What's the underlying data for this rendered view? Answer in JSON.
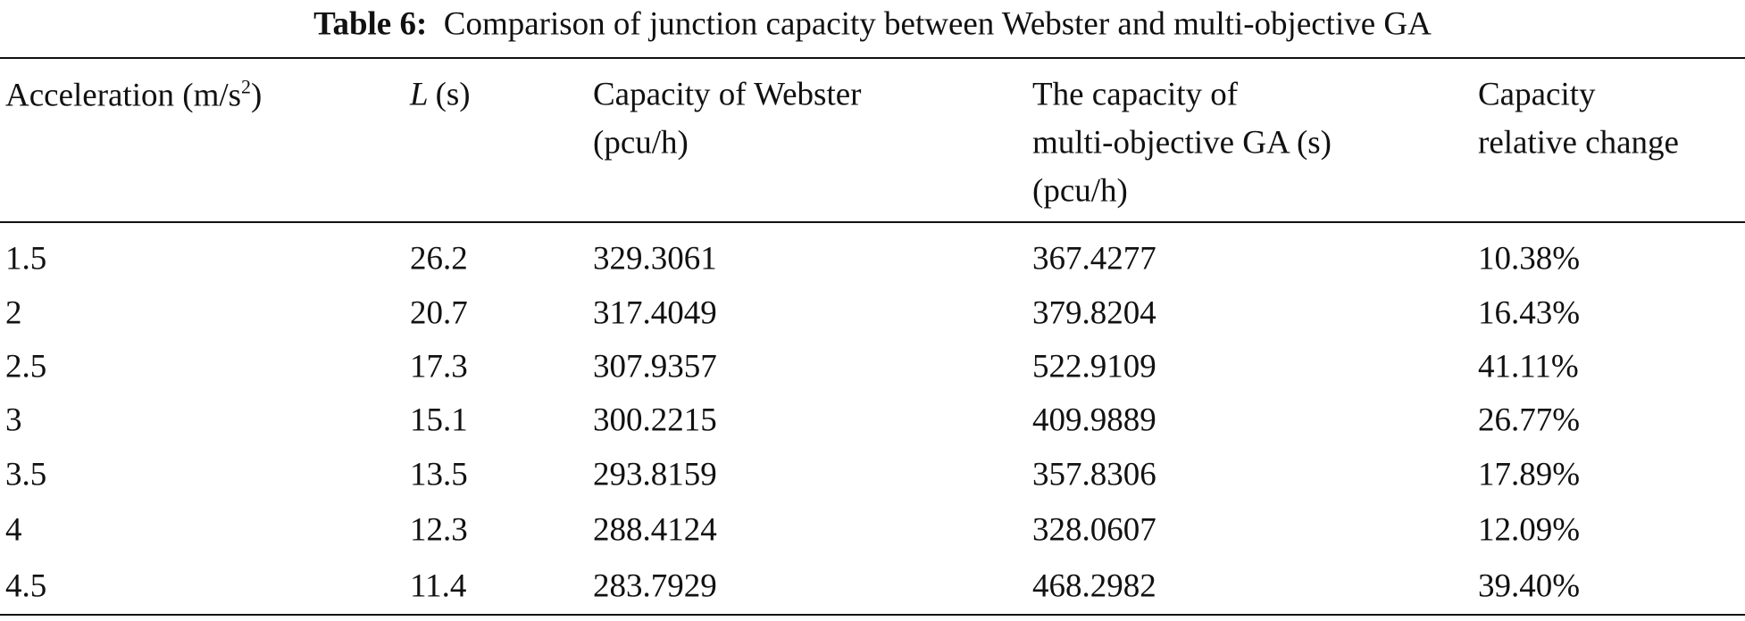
{
  "title": {
    "label": "Table 6:",
    "text": "Comparison of junction capacity between Webster and multi-objective GA"
  },
  "table": {
    "header": [
      [
        [
          {
            "t": "Acceleration (m/s"
          },
          {
            "t": "2",
            "s": "sup"
          },
          {
            "t": ")"
          }
        ]
      ],
      [
        [
          {
            "t": "L",
            "s": "italic"
          },
          {
            "t": "(s)"
          }
        ]
      ],
      [
        [
          {
            "t": "Capacity of Webster"
          }
        ],
        [
          {
            "t": "(pcu/h)"
          }
        ]
      ],
      [
        [
          {
            "t": "The capacity of"
          }
        ],
        [
          {
            "t": "multi-objective GA (s)"
          }
        ],
        [
          {
            "t": "(pcu/h)"
          }
        ]
      ],
      [
        [
          {
            "t": "Capacity"
          }
        ],
        [
          {
            "t": "relative change"
          }
        ]
      ]
    ],
    "rows": [
      [
        "1.5",
        "26.2",
        "329.3061",
        "367.4277",
        "10.38%"
      ],
      [
        "2",
        "20.7",
        "317.4049",
        "379.8204",
        "16.43%"
      ],
      [
        "2.5",
        "17.3",
        "307.9357",
        "522.9109",
        "41.11%"
      ],
      [
        "3",
        "15.1",
        "300.2215",
        "409.9889",
        "26.77%"
      ],
      [
        "3.5",
        "13.5",
        "293.8159",
        "357.8306",
        "17.89%"
      ],
      [
        "4",
        "12.3",
        "288.4124",
        "328.0607",
        "12.09%"
      ],
      [
        "4.5",
        "11.4",
        "283.7929",
        "468.2982",
        "39.40%"
      ]
    ]
  }
}
